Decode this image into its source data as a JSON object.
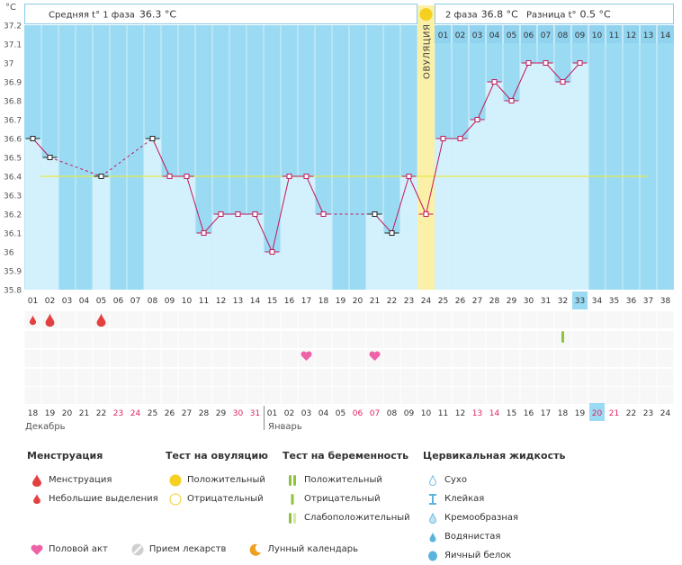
{
  "chart_data": {
    "type": "line",
    "unit": "°C",
    "ylim": [
      35.8,
      37.2
    ],
    "yticks": [
      "37.2",
      "37.1",
      "37",
      "36.9",
      "36.8",
      "36.7",
      "36.6",
      "36.5",
      "36.4",
      "36.3",
      "36.2",
      "36.1",
      "36",
      "35.9",
      "35.8"
    ],
    "phase1_label": "Средняя t° 1 фаза",
    "phase1_value": "36.3 °C",
    "phase2_label": "2 фаза",
    "phase2_value": "36.8 °C",
    "diff_label": "Разница t°",
    "diff_value": "0.5 °C",
    "ovulation_label": "ОВУЛЯЦИЯ",
    "ovulation_day": 24,
    "cover_line": 36.4,
    "cycle_days": [
      "01",
      "02",
      "03",
      "04",
      "05",
      "06",
      "07",
      "08",
      "09",
      "10",
      "11",
      "12",
      "13",
      "14",
      "15",
      "16",
      "17",
      "18",
      "19",
      "20",
      "21",
      "22",
      "23",
      "24",
      "25",
      "26",
      "27",
      "28",
      "29",
      "30",
      "31",
      "32",
      "33",
      "34",
      "35",
      "36",
      "37",
      "38"
    ],
    "current_cycle_day": "33",
    "post_ovulation_days": [
      "01",
      "02",
      "03",
      "04",
      "05",
      "06",
      "07",
      "08",
      "09",
      "10",
      "11",
      "12",
      "13",
      "14"
    ],
    "temperatures": [
      36.6,
      36.5,
      null,
      null,
      36.4,
      null,
      null,
      36.6,
      36.4,
      36.4,
      36.1,
      36.2,
      36.2,
      36.2,
      36.0,
      36.4,
      36.4,
      36.2,
      null,
      null,
      36.2,
      36.1,
      36.4,
      36.2,
      36.6,
      36.6,
      36.7,
      36.9,
      36.8,
      37.0,
      37.0,
      36.9,
      37.0,
      null,
      null,
      null,
      null,
      null
    ],
    "temperature_markers": [
      "black",
      "black",
      null,
      null,
      "black",
      null,
      null,
      "black",
      "red",
      "red",
      "red",
      "red",
      "red",
      "red",
      "red",
      "red",
      "red",
      "red",
      null,
      null,
      "black",
      "black",
      "red",
      "red",
      "red",
      "red",
      "red",
      "red",
      "red",
      "red",
      "red",
      "red",
      "red",
      null,
      null,
      null,
      null,
      null
    ],
    "dates": [
      "18",
      "19",
      "20",
      "21",
      "22",
      "23",
      "24",
      "25",
      "26",
      "27",
      "28",
      "29",
      "30",
      "31",
      "01",
      "02",
      "03",
      "04",
      "05",
      "06",
      "07",
      "08",
      "09",
      "10",
      "11",
      "12",
      "13",
      "14",
      "15",
      "16",
      "17",
      "18",
      "19",
      "20",
      "21",
      "22",
      "23",
      "24"
    ],
    "weekend_dates": [
      false,
      false,
      false,
      false,
      false,
      true,
      true,
      false,
      false,
      false,
      false,
      false,
      true,
      true,
      false,
      false,
      false,
      false,
      false,
      true,
      true,
      false,
      false,
      false,
      false,
      false,
      true,
      true,
      false,
      false,
      false,
      false,
      false,
      true,
      true,
      false,
      false,
      false
    ],
    "current_date": "19",
    "month_1": "Декабрь",
    "month_2": "Январь",
    "menstruation_days": [
      {
        "day": 1,
        "type": "small"
      },
      {
        "day": 2,
        "type": "full"
      },
      {
        "day": 5,
        "type": "full"
      }
    ],
    "intercourse_days": [
      17,
      21
    ],
    "pregnancy_test_days": [
      {
        "day": 32,
        "type": "negative"
      }
    ]
  },
  "legend": {
    "menstruation": {
      "title": "Менструация",
      "items": [
        "Менструация",
        "Небольшие выделения"
      ]
    },
    "ovulation_test": {
      "title": "Тест на овуляцию",
      "items": [
        "Положительный",
        "Отрицательный"
      ]
    },
    "pregnancy_test": {
      "title": "Тест на беременность",
      "items": [
        "Положительный",
        "Отрицательный",
        "Слабоположительный"
      ]
    },
    "cervical": {
      "title": "Цервикальная жидкость",
      "items": [
        "Сухо",
        "Клейкая",
        "Кремообразная",
        "Водянистая",
        "Яичный белок"
      ]
    },
    "bottom": [
      "Половой акт",
      "Прием лекарств",
      "Лунный календарь"
    ]
  },
  "colors": {
    "background": "#9ADBF3",
    "bar": "#D3F1FD",
    "ovulation": "#FAF0A8",
    "line": "#C2185B",
    "cover_line": "#E8E84A",
    "weekend": "#E0245E",
    "highlight": "#9ADBF3",
    "heart": "#F062A8",
    "drop": "#E34040",
    "test_green": "#8CC53D"
  }
}
